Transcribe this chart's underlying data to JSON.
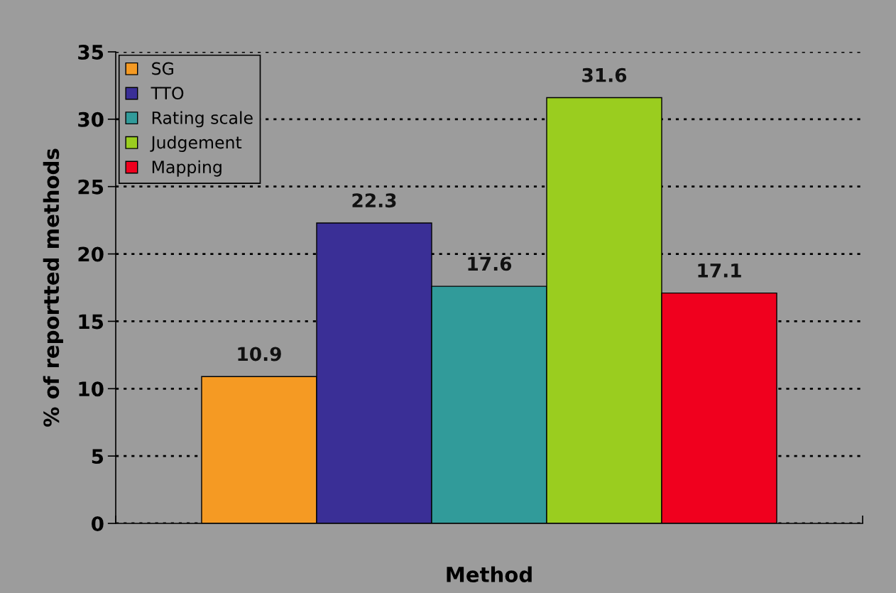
{
  "chart_data": {
    "type": "bar",
    "xlabel": "Method",
    "ylabel": "% of reportted methods",
    "categories": [
      null
    ],
    "series": [
      {
        "name": "SG",
        "color": "#f59a23",
        "values": [
          10.9
        ]
      },
      {
        "name": "TTO",
        "color": "#3a2f96",
        "values": [
          22.3
        ]
      },
      {
        "name": "Rating scale",
        "color": "#319b9a",
        "values": [
          17.6
        ]
      },
      {
        "name": "Judgement",
        "color": "#9acd1f",
        "values": [
          31.6
        ]
      },
      {
        "name": "Mapping",
        "color": "#f0001e",
        "values": [
          17.1
        ]
      }
    ],
    "ylim": [
      0,
      35
    ],
    "yticks": [
      0,
      5,
      10,
      15,
      20,
      25,
      30,
      35
    ],
    "grid": "y",
    "legend": "top left",
    "data_labels": true
  }
}
